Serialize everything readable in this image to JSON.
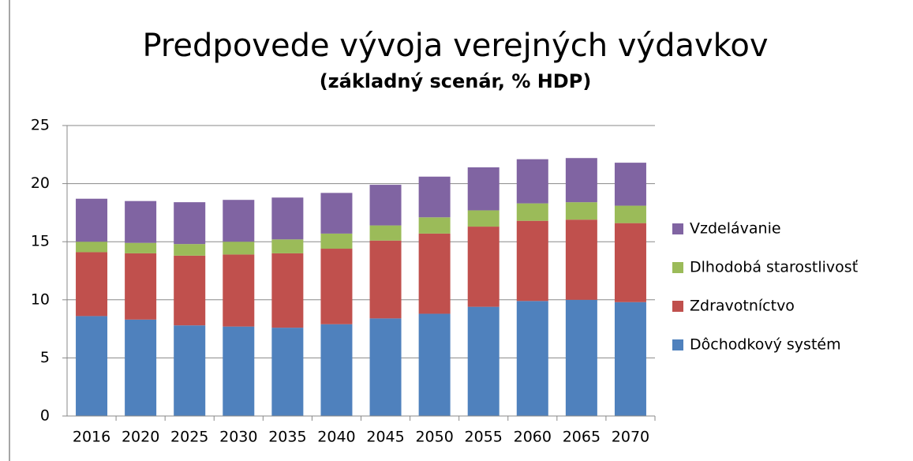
{
  "chart_data": {
    "type": "stacked_bar",
    "title": "Predpovede vývoja verejných výdavkov",
    "subtitle": "(základný scenár, % HDP)",
    "categories": [
      "2016",
      "2020",
      "2025",
      "2030",
      "2035",
      "2040",
      "2045",
      "2050",
      "2055",
      "2060",
      "2065",
      "2070"
    ],
    "series": [
      {
        "name": "Dôchodkový systém",
        "color": "#4f81bd",
        "values": [
          8.6,
          8.3,
          7.8,
          7.7,
          7.6,
          7.9,
          8.4,
          8.8,
          9.4,
          9.9,
          10.0,
          9.8
        ]
      },
      {
        "name": "Zdravotníctvo",
        "color": "#c0504d",
        "values": [
          5.5,
          5.7,
          6.0,
          6.2,
          6.4,
          6.5,
          6.7,
          6.9,
          6.9,
          6.9,
          6.9,
          6.8
        ]
      },
      {
        "name": "Dlhodobá starostlivosť",
        "color": "#9bbb59",
        "values": [
          0.9,
          0.9,
          1.0,
          1.1,
          1.2,
          1.3,
          1.3,
          1.4,
          1.4,
          1.5,
          1.5,
          1.5
        ]
      },
      {
        "name": "Vzdelávanie",
        "color": "#8064a2",
        "values": [
          3.7,
          3.6,
          3.6,
          3.6,
          3.6,
          3.5,
          3.5,
          3.5,
          3.7,
          3.8,
          3.8,
          3.7
        ]
      }
    ],
    "ylim": [
      0,
      25
    ],
    "yticks": [
      0,
      5,
      10,
      15,
      20,
      25
    ],
    "grid": true,
    "legend": "right"
  }
}
